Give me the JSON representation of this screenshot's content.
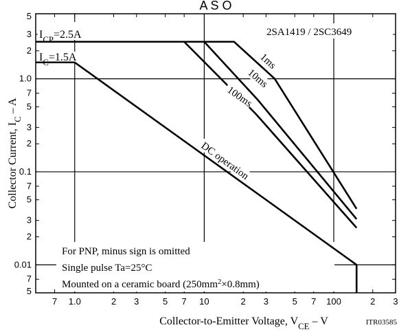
{
  "chart_data": {
    "type": "line",
    "title": "A S O",
    "subtitle": "2SA1419 / 2SC3649",
    "x_label": {
      "text": "Collector-to-Emitter Voltage, V",
      "sub": "CE",
      "after": " – V"
    },
    "y_label": {
      "text": "Collector Current, I",
      "sub": "C",
      "after": " – A"
    },
    "code": "ITR03585",
    "xscale": "log",
    "yscale": "log",
    "xlim": [
      0.5,
      300
    ],
    "ylim": [
      0.005,
      5
    ],
    "xticks": [
      {
        "value": 0.7,
        "label": "7"
      },
      {
        "value": 1,
        "label": "1.0"
      },
      2,
      3,
      5,
      7,
      10,
      {
        "value": 20,
        "label": "2"
      },
      {
        "value": 30,
        "label": "3"
      },
      {
        "value": 50,
        "label": "5"
      },
      {
        "value": 70,
        "label": "7"
      },
      100,
      {
        "value": 200,
        "label": "2"
      },
      {
        "value": 300,
        "label": "3"
      }
    ],
    "yticks": [
      5,
      3,
      2,
      {
        "value": 1,
        "label": "1.0"
      },
      {
        "value": 0.7,
        "label": "7"
      },
      {
        "value": 0.5,
        "label": "5"
      },
      {
        "value": 0.3,
        "label": "3"
      },
      {
        "value": 0.2,
        "label": "2"
      },
      0.1,
      {
        "value": 0.07,
        "label": "7"
      },
      {
        "value": 0.05,
        "label": "5"
      },
      {
        "value": 0.03,
        "label": "3"
      },
      {
        "value": 0.02,
        "label": "2"
      },
      0.01,
      {
        "value": 0.007,
        "label": "7"
      },
      {
        "value": 0.005,
        "label": "5"
      }
    ],
    "grid": true,
    "series": [
      {
        "name": "1ms",
        "color": "#000000",
        "x": [
          0.5,
          17,
          35,
          150
        ],
        "values": [
          2.5,
          2.5,
          1.0,
          0.04
        ]
      },
      {
        "name": "10ms",
        "color": "#000000",
        "x": [
          0.5,
          10,
          26,
          150
        ],
        "values": [
          2.5,
          2.5,
          0.59,
          0.031
        ]
      },
      {
        "name": "100ms",
        "color": "#000000",
        "x": [
          0.5,
          7,
          25,
          150
        ],
        "values": [
          2.5,
          2.5,
          0.42,
          0.025
        ]
      },
      {
        "name": "DC operation",
        "color": "#000000",
        "x": [
          0.5,
          1,
          150,
          150
        ],
        "values": [
          1.5,
          1.5,
          0.01,
          0.005
        ]
      }
    ],
    "annotations": {
      "icp": {
        "text": "I",
        "sub": "CP",
        "after": "=2.5A"
      },
      "ic": {
        "text": "I",
        "sub": "C",
        "after": "=1.5A"
      }
    },
    "notes": [
      "For PNP, minus sign is omitted",
      "Single pulse Ta=25°C",
      {
        "text": "Mounted on a ceramic board (250mm",
        "sup": "2",
        "after": "×0.8mm)"
      }
    ]
  }
}
